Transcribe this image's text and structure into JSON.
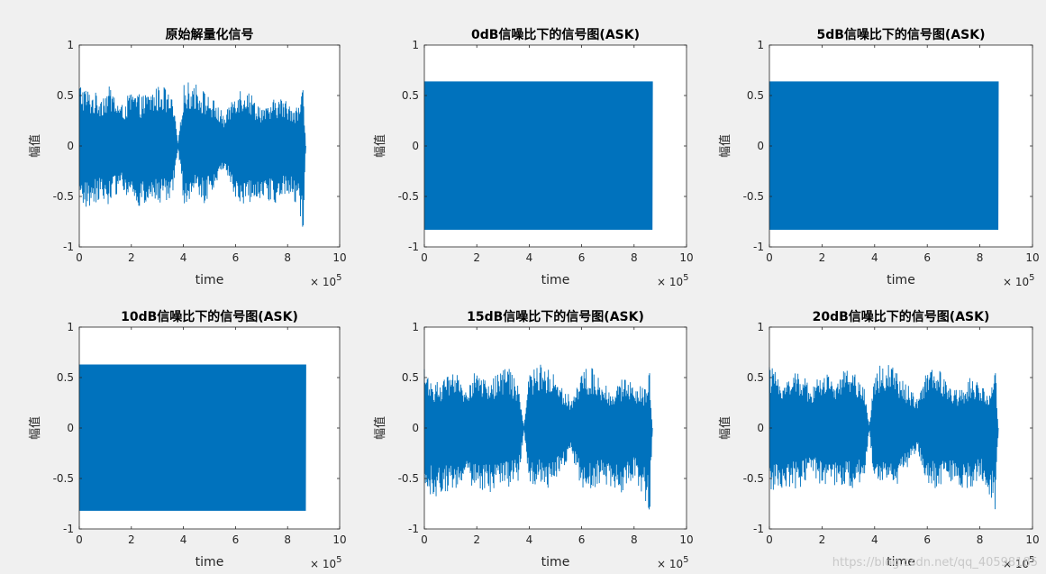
{
  "figure": {
    "background": "#f0f0f0",
    "axes_background": "#ffffff",
    "axis_color": "#262626",
    "watermark": "https://blog.csdn.net/qq_40598185"
  },
  "chart_data": [
    {
      "type": "line",
      "title": "原始解量化信号",
      "xlabel": "time",
      "ylabel": "幅值",
      "xlim": [
        0,
        1000000
      ],
      "ylim": [
        -1,
        1
      ],
      "xticks": [
        0,
        2,
        4,
        6,
        8,
        10
      ],
      "yticks": [
        -1,
        -0.5,
        0,
        0.5,
        1
      ],
      "x_multiplier": "× 10^5",
      "grid": false,
      "series": [
        {
          "color": "#0072bd",
          "x_end": 870000,
          "envelope": {
            "x": [
              0,
              40000,
              80000,
              120000,
              160000,
              200000,
              240000,
              280000,
              320000,
              360000,
              380000,
              400000,
              440000,
              480000,
              520000,
              560000,
              600000,
              640000,
              680000,
              720000,
              760000,
              800000,
              840000,
              860000,
              870000
            ],
            "upper": [
              0.65,
              0.55,
              0.52,
              0.6,
              0.4,
              0.55,
              0.5,
              0.56,
              0.62,
              0.45,
              0.02,
              0.62,
              0.65,
              0.55,
              0.45,
              0.3,
              0.58,
              0.6,
              0.45,
              0.38,
              0.5,
              0.45,
              0.4,
              0.56,
              0.0
            ],
            "lower": [
              -0.62,
              -0.62,
              -0.52,
              -0.6,
              -0.4,
              -0.58,
              -0.62,
              -0.55,
              -0.6,
              -0.5,
              -0.02,
              -0.58,
              -0.5,
              -0.58,
              -0.4,
              -0.2,
              -0.55,
              -0.6,
              -0.5,
              -0.55,
              -0.6,
              -0.45,
              -0.65,
              -0.82,
              0.0
            ]
          }
        }
      ]
    },
    {
      "type": "line",
      "title": "0dB信噪比下的信号图(ASK)",
      "xlabel": "time",
      "ylabel": "幅值",
      "xlim": [
        0,
        1000000
      ],
      "ylim": [
        -1,
        1
      ],
      "xticks": [
        0,
        2,
        4,
        6,
        8,
        10
      ],
      "yticks": [
        -1,
        -0.5,
        0,
        0.5,
        1
      ],
      "x_multiplier": "× 10^5",
      "grid": false,
      "series": [
        {
          "color": "#0072bd",
          "x_end": 870000,
          "envelope": {
            "x": [
              0,
              870000
            ],
            "upper": [
              0.64,
              0.64
            ],
            "lower": [
              -0.83,
              -0.83
            ]
          }
        }
      ]
    },
    {
      "type": "line",
      "title": "5dB信噪比下的信号图(ASK)",
      "xlabel": "time",
      "ylabel": "幅值",
      "xlim": [
        0,
        1000000
      ],
      "ylim": [
        -1,
        1
      ],
      "xticks": [
        0,
        2,
        4,
        6,
        8,
        10
      ],
      "yticks": [
        -1,
        -0.5,
        0,
        0.5,
        1
      ],
      "x_multiplier": "× 10^5",
      "grid": false,
      "series": [
        {
          "color": "#0072bd",
          "x_end": 870000,
          "envelope": {
            "x": [
              0,
              870000
            ],
            "upper": [
              0.64,
              0.64
            ],
            "lower": [
              -0.83,
              -0.83
            ]
          }
        }
      ]
    },
    {
      "type": "line",
      "title": "10dB信噪比下的信号图(ASK)",
      "xlabel": "time",
      "ylabel": "幅值",
      "xlim": [
        0,
        1000000
      ],
      "ylim": [
        -1,
        1
      ],
      "xticks": [
        0,
        2,
        4,
        6,
        8,
        10
      ],
      "yticks": [
        -1,
        -0.5,
        0,
        0.5,
        1
      ],
      "x_multiplier": "× 10^5",
      "grid": false,
      "series": [
        {
          "color": "#0072bd",
          "x_end": 870000,
          "envelope": {
            "x": [
              0,
              870000
            ],
            "upper": [
              0.63,
              0.63
            ],
            "lower": [
              -0.82,
              -0.82
            ]
          }
        }
      ]
    },
    {
      "type": "line",
      "title": "15dB信噪比下的信号图(ASK)",
      "xlabel": "time",
      "ylabel": "幅值",
      "xlim": [
        0,
        1000000
      ],
      "ylim": [
        -1,
        1
      ],
      "xticks": [
        0,
        2,
        4,
        6,
        8,
        10
      ],
      "yticks": [
        -1,
        -0.5,
        0,
        0.5,
        1
      ],
      "x_multiplier": "× 10^5",
      "grid": false,
      "series": [
        {
          "color": "#0072bd",
          "x_end": 870000,
          "envelope": {
            "x": [
              0,
              40000,
              80000,
              120000,
              160000,
              200000,
              240000,
              280000,
              320000,
              360000,
              380000,
              400000,
              440000,
              480000,
              520000,
              560000,
              600000,
              640000,
              680000,
              720000,
              760000,
              800000,
              840000,
              860000,
              870000
            ],
            "upper": [
              0.62,
              0.45,
              0.5,
              0.55,
              0.4,
              0.6,
              0.45,
              0.55,
              0.62,
              0.4,
              0.02,
              0.55,
              0.65,
              0.6,
              0.45,
              0.3,
              0.58,
              0.6,
              0.45,
              0.38,
              0.5,
              0.45,
              0.4,
              0.55,
              0.0
            ],
            "lower": [
              -0.62,
              -0.7,
              -0.65,
              -0.6,
              -0.55,
              -0.6,
              -0.65,
              -0.62,
              -0.6,
              -0.55,
              -0.02,
              -0.6,
              -0.55,
              -0.62,
              -0.45,
              -0.25,
              -0.6,
              -0.62,
              -0.55,
              -0.6,
              -0.65,
              -0.5,
              -0.7,
              -0.82,
              0.0
            ]
          }
        }
      ]
    },
    {
      "type": "line",
      "title": "20dB信噪比下的信号图(ASK)",
      "xlabel": "time",
      "ylabel": "幅值",
      "xlim": [
        0,
        1000000
      ],
      "ylim": [
        -1,
        1
      ],
      "xticks": [
        0,
        2,
        4,
        6,
        8,
        10
      ],
      "yticks": [
        -1,
        -0.5,
        0,
        0.5,
        1
      ],
      "x_multiplier": "× 10^5",
      "grid": false,
      "series": [
        {
          "color": "#0072bd",
          "x_end": 870000,
          "envelope": {
            "x": [
              0,
              40000,
              80000,
              120000,
              160000,
              200000,
              240000,
              280000,
              320000,
              360000,
              380000,
              400000,
              440000,
              480000,
              520000,
              560000,
              600000,
              640000,
              680000,
              720000,
              760000,
              800000,
              840000,
              860000,
              870000
            ],
            "upper": [
              0.63,
              0.5,
              0.52,
              0.58,
              0.4,
              0.58,
              0.5,
              0.56,
              0.6,
              0.42,
              0.02,
              0.6,
              0.65,
              0.58,
              0.45,
              0.3,
              0.58,
              0.6,
              0.45,
              0.38,
              0.5,
              0.45,
              0.4,
              0.55,
              0.0
            ],
            "lower": [
              -0.62,
              -0.65,
              -0.6,
              -0.6,
              -0.45,
              -0.6,
              -0.62,
              -0.58,
              -0.6,
              -0.52,
              -0.02,
              -0.6,
              -0.52,
              -0.6,
              -0.42,
              -0.22,
              -0.58,
              -0.6,
              -0.52,
              -0.58,
              -0.62,
              -0.48,
              -0.68,
              -0.82,
              0.0
            ]
          }
        }
      ]
    }
  ]
}
